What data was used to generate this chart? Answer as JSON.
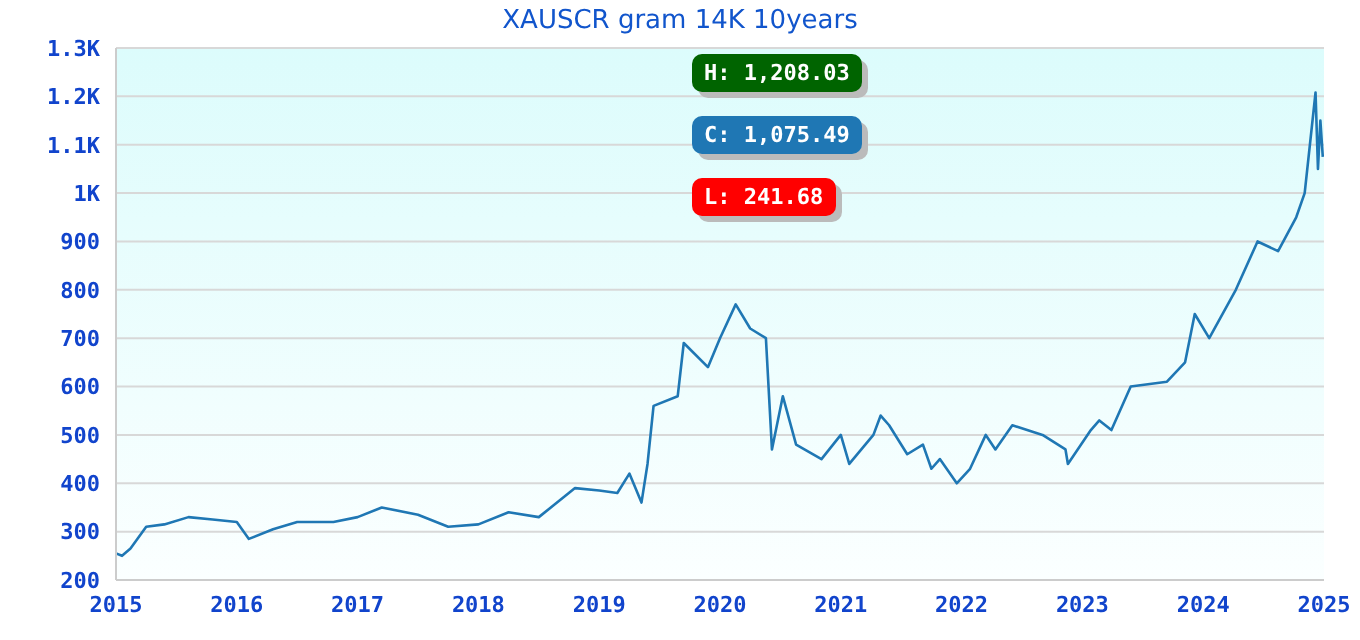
{
  "chart_data": {
    "type": "line",
    "title": "XAUSCR gram 14K 10years",
    "x": [
      2015.0,
      2015.05,
      2015.12,
      2015.25,
      2015.4,
      2015.6,
      2015.8,
      2016.0,
      2016.1,
      2016.3,
      2016.5,
      2016.8,
      2017.0,
      2017.2,
      2017.5,
      2017.75,
      2018.0,
      2018.25,
      2018.5,
      2018.8,
      2019.0,
      2019.15,
      2019.25,
      2019.35,
      2019.4,
      2019.45,
      2019.65,
      2019.7,
      2019.9,
      2020.0,
      2020.13,
      2020.25,
      2020.38,
      2020.43,
      2020.52,
      2020.63,
      2020.84,
      2021.0,
      2021.07,
      2021.27,
      2021.33,
      2021.4,
      2021.55,
      2021.68,
      2021.75,
      2021.82,
      2021.96,
      2022.07,
      2022.2,
      2022.28,
      2022.42,
      2022.67,
      2022.86,
      2022.88,
      2023.07,
      2023.14,
      2023.24,
      2023.4,
      2023.7,
      2023.85,
      2023.93,
      2024.05,
      2024.27,
      2024.45,
      2024.62,
      2024.77,
      2024.84,
      2024.93,
      2024.95,
      2024.97,
      2024.99
    ],
    "values": [
      255,
      250,
      265,
      310,
      315,
      330,
      325,
      320,
      285,
      305,
      320,
      320,
      330,
      350,
      335,
      310,
      315,
      340,
      330,
      390,
      385,
      380,
      420,
      360,
      440,
      560,
      580,
      690,
      640,
      700,
      770,
      720,
      700,
      470,
      580,
      480,
      450,
      500,
      440,
      500,
      540,
      520,
      460,
      480,
      430,
      450,
      400,
      430,
      500,
      470,
      520,
      500,
      470,
      440,
      510,
      530,
      510,
      600,
      610,
      650,
      750,
      700,
      800,
      900,
      880,
      950,
      1000,
      1208,
      1050,
      1150,
      1075
    ],
    "color": "#1f77b4",
    "xlim": [
      2015,
      2025
    ],
    "xticks": [
      2015,
      2016,
      2017,
      2018,
      2019,
      2020,
      2021,
      2022,
      2023,
      2024,
      2025
    ],
    "ylim": [
      200,
      1300
    ],
    "yticks": [
      200,
      300,
      400,
      500,
      600,
      700,
      800,
      900,
      {
        "value": 1000,
        "label": "1K"
      },
      {
        "value": 1100,
        "label": "1.1K"
      },
      {
        "value": 1200,
        "label": "1.2K"
      },
      {
        "value": 1300,
        "label": "1.3K"
      }
    ],
    "grid": "y",
    "annotations": [
      "H: 1,208.03",
      "C: 1,075.49",
      "L: 241.68"
    ]
  }
}
